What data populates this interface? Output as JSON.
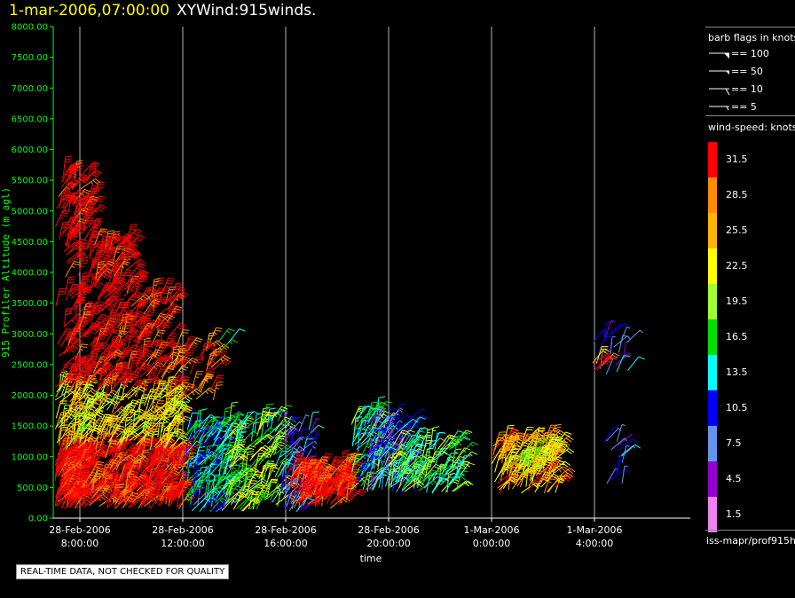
{
  "header": {
    "timestamp": "1-mar-2006,07:00:00",
    "name": "XYWind:915winds."
  },
  "chart_data": {
    "type": "scatter",
    "ylabel": "915 Profiler Altitude (m agl)",
    "xlabel": "time",
    "ylim": [
      0,
      8000
    ],
    "y_ticks": [
      "0.00",
      "500.00",
      "1000.00",
      "1500.00",
      "2000.00",
      "2500.00",
      "3000.00",
      "3500.00",
      "4000.00",
      "4500.00",
      "5000.00",
      "5500.00",
      "6000.00",
      "6500.00",
      "7000.00",
      "7500.00",
      "8000.00"
    ],
    "x_hours_range": [
      6,
      22
    ],
    "x_ticks": [
      {
        "hour": 8,
        "l1": "28-Feb-2006",
        "l2": "8:00:00"
      },
      {
        "hour": 12,
        "l1": "28-Feb-2006",
        "l2": "12:00:00"
      },
      {
        "hour": 16,
        "l1": "28-Feb-2006",
        "l2": "16:00:00"
      },
      {
        "hour": 20,
        "l1": "28-Feb-2006",
        "l2": "20:00:00"
      },
      {
        "hour": 24,
        "l1": "1-Mar-2006",
        "l2": "0:00:00"
      },
      {
        "hour": 28,
        "l1": "1-Mar-2006",
        "l2": "4:00:00"
      }
    ],
    "grid": true,
    "colors": {
      "axis": "#00ff00",
      "grid": "#b4b4b4",
      "tick_text": "#00ff00"
    },
    "wind_clusters": [
      {
        "h0": 6.2,
        "h1": 8.0,
        "alt0": 150,
        "alt1": 1100,
        "speed": 33,
        "n": 260
      },
      {
        "h0": 8.0,
        "h1": 12.0,
        "alt0": 150,
        "alt1": 1100,
        "speed": 32,
        "n": 300
      },
      {
        "h0": 6.2,
        "h1": 8.2,
        "alt0": 1100,
        "alt1": 2100,
        "speed": 22,
        "n": 140
      },
      {
        "h0": 8.2,
        "h1": 11.8,
        "alt0": 1100,
        "alt1": 2000,
        "speed": 23,
        "n": 160
      },
      {
        "h0": 6.2,
        "h1": 8.5,
        "alt0": 2100,
        "alt1": 5600,
        "speed": 34,
        "n": 250
      },
      {
        "h0": 8.5,
        "h1": 10.0,
        "alt0": 2000,
        "alt1": 4500,
        "speed": 33,
        "n": 150
      },
      {
        "h0": 10.0,
        "h1": 11.5,
        "alt0": 1900,
        "alt1": 3700,
        "speed": 32,
        "n": 80
      },
      {
        "h0": 11.5,
        "h1": 13.2,
        "alt0": 1900,
        "alt1": 2900,
        "speed": 30,
        "n": 40
      },
      {
        "h0": 12.0,
        "h1": 13.8,
        "alt0": 100,
        "alt1": 1500,
        "speed": 13,
        "n": 160
      },
      {
        "h0": 13.5,
        "h1": 15.8,
        "alt0": 100,
        "alt1": 1600,
        "speed": 18,
        "n": 150
      },
      {
        "h0": 15.8,
        "h1": 17.0,
        "alt0": 100,
        "alt1": 1500,
        "speed": 10,
        "n": 80
      },
      {
        "h0": 16.1,
        "h1": 18.5,
        "alt0": 150,
        "alt1": 800,
        "speed": 32,
        "n": 160
      },
      {
        "h0": 18.5,
        "h1": 19.8,
        "alt0": 400,
        "alt1": 1700,
        "speed": 15,
        "n": 90
      },
      {
        "h0": 19.0,
        "h1": 21.0,
        "alt0": 400,
        "alt1": 1600,
        "speed": 8,
        "n": 110
      },
      {
        "h0": 20.0,
        "h1": 22.8,
        "alt0": 400,
        "alt1": 1200,
        "speed": 17,
        "n": 130
      },
      {
        "h0": 24.0,
        "h1": 26.5,
        "alt0": 400,
        "alt1": 1250,
        "speed": 26,
        "n": 140
      },
      {
        "h0": 24.5,
        "h1": 26.5,
        "alt0": 700,
        "alt1": 1100,
        "speed": 21,
        "n": 50
      },
      {
        "h0": 27.9,
        "h1": 29.5,
        "alt0": 2300,
        "alt1": 3000,
        "speed": 10,
        "n": 18
      },
      {
        "h0": 27.9,
        "h1": 28.3,
        "alt0": 2400,
        "alt1": 2600,
        "speed": 28,
        "n": 6
      },
      {
        "h0": 28.3,
        "h1": 29.2,
        "alt0": 550,
        "alt1": 1300,
        "speed": 8,
        "n": 14
      },
      {
        "h0": 13.2,
        "h1": 13.9,
        "alt0": 2700,
        "alt1": 2900,
        "speed": 14,
        "n": 3
      }
    ]
  },
  "legend": {
    "flags_title": "barb flags in knots",
    "flags": [
      {
        "label": "== 100",
        "kind": "pennant"
      },
      {
        "label": "== 50",
        "kind": "half-pennant"
      },
      {
        "label": "== 10",
        "kind": "full"
      },
      {
        "label": "== 5",
        "kind": "half"
      }
    ],
    "colorbar_title": "wind-speed: knots",
    "colorbar": [
      {
        "label": "31.5",
        "color": "#ff0000"
      },
      {
        "label": "28.5",
        "color": "#ff8c00"
      },
      {
        "label": "25.5",
        "color": "#ffb400"
      },
      {
        "label": "22.5",
        "color": "#ffff00"
      },
      {
        "label": "19.5",
        "color": "#a0ff30"
      },
      {
        "label": "16.5",
        "color": "#00e000"
      },
      {
        "label": "13.5",
        "color": "#00ffff"
      },
      {
        "label": "10.5",
        "color": "#0000ff"
      },
      {
        "label": "7.5",
        "color": "#6495ed"
      },
      {
        "label": "4.5",
        "color": "#9400d3"
      },
      {
        "label": "1.5",
        "color": "#ee82ee"
      }
    ],
    "source": "iss-mapr/prof915h"
  },
  "footer": {
    "qc_notice": "REAL-TIME DATA, NOT CHECKED FOR QUALITY"
  }
}
